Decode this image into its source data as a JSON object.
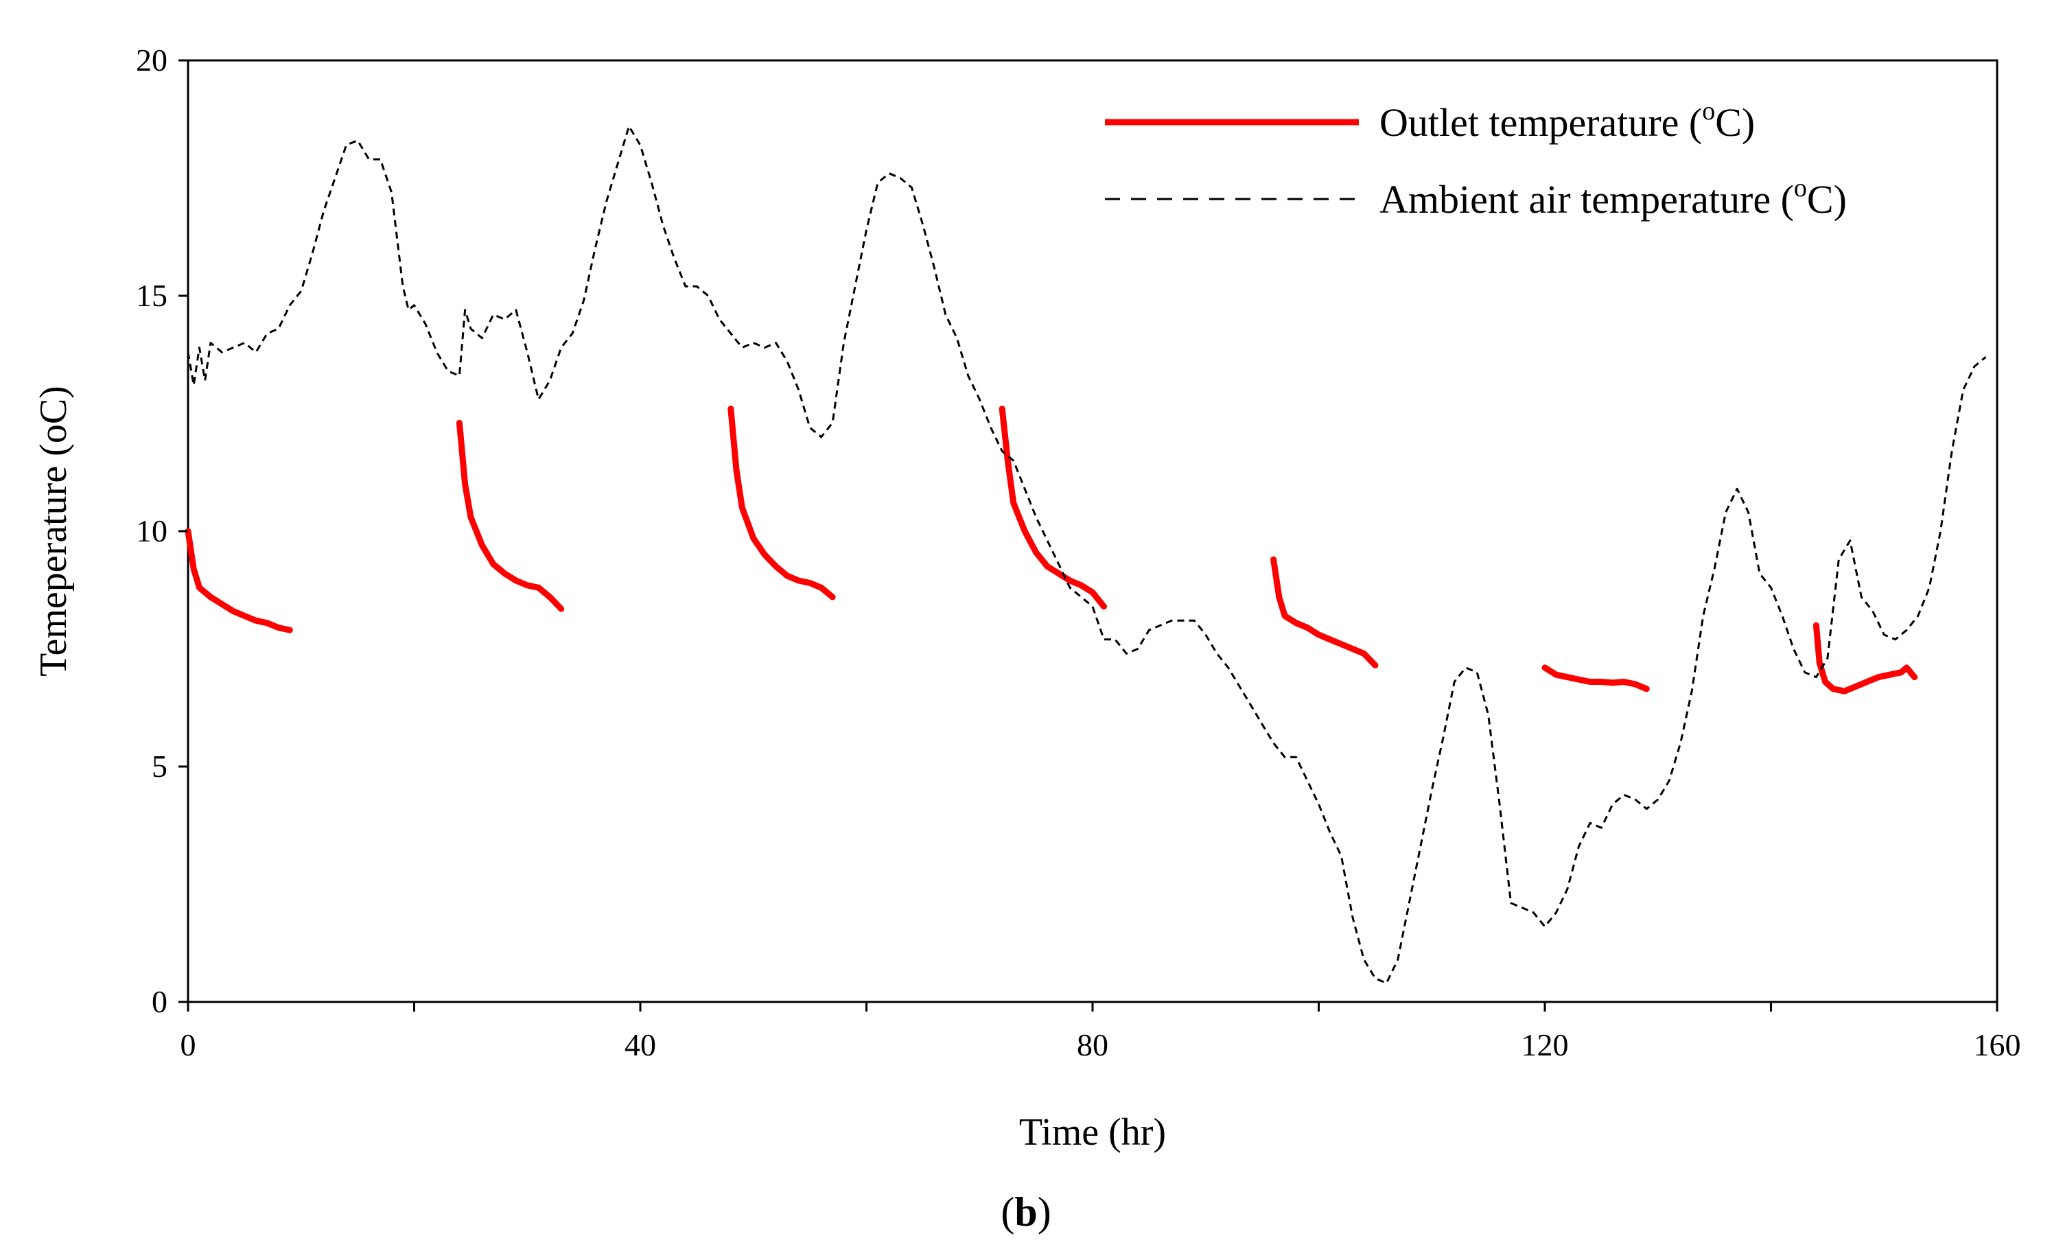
{
  "chart_data": {
    "type": "line",
    "xlabel": "Time (hr)",
    "ylabel": "Temeperature (oC)",
    "xlim": [
      0,
      160
    ],
    "ylim": [
      0,
      20
    ],
    "x_ticks": [
      0,
      40,
      80,
      120,
      160
    ],
    "x_minor_ticks": [
      20,
      60,
      100,
      140
    ],
    "y_ticks": [
      0,
      5,
      10,
      15,
      20
    ],
    "caption": {
      "open": "(",
      "letter": "b",
      "close": ")"
    },
    "legend_position": "top-right",
    "series": [
      {
        "name": "Outlet temperature",
        "legend_label": "Outlet temperature (",
        "legend_sup": "o",
        "legend_suffix": "C)",
        "color": "#ff0000",
        "style": "solid",
        "segments": [
          {
            "x": [
              0,
              0.5,
              1,
              2,
              3,
              4,
              5,
              6,
              7,
              8,
              9
            ],
            "y": [
              10.0,
              9.2,
              8.8,
              8.6,
              8.45,
              8.3,
              8.2,
              8.1,
              8.05,
              7.95,
              7.9
            ]
          },
          {
            "x": [
              24,
              24.5,
              25,
              26,
              27,
              28,
              29,
              30,
              31,
              32,
              33
            ],
            "y": [
              12.3,
              11.0,
              10.3,
              9.7,
              9.3,
              9.1,
              8.95,
              8.85,
              8.8,
              8.6,
              8.35
            ]
          },
          {
            "x": [
              48,
              48.5,
              49,
              50,
              51,
              52,
              53,
              54,
              55,
              56,
              57
            ],
            "y": [
              12.6,
              11.3,
              10.5,
              9.85,
              9.5,
              9.25,
              9.05,
              8.95,
              8.9,
              8.8,
              8.6
            ]
          },
          {
            "x": [
              72,
              72.5,
              73,
              74,
              75,
              76,
              77,
              78,
              79,
              80,
              81
            ],
            "y": [
              12.6,
              11.5,
              10.6,
              10.0,
              9.55,
              9.25,
              9.1,
              8.95,
              8.85,
              8.7,
              8.4
            ]
          },
          {
            "x": [
              96,
              96.5,
              97,
              98,
              99,
              100,
              101,
              102,
              103,
              104,
              105
            ],
            "y": [
              9.4,
              8.6,
              8.2,
              8.05,
              7.95,
              7.8,
              7.7,
              7.6,
              7.5,
              7.4,
              7.15
            ]
          },
          {
            "x": [
              120,
              121,
              122,
              123,
              124,
              125,
              126,
              127,
              128,
              129
            ],
            "y": [
              7.1,
              6.95,
              6.9,
              6.85,
              6.8,
              6.8,
              6.78,
              6.8,
              6.75,
              6.65
            ]
          },
          {
            "x": [
              144,
              144.3,
              144.8,
              145.5,
              146.5,
              147.5,
              148.5,
              149.5,
              150.5,
              151.5,
              152,
              152.7
            ],
            "y": [
              8.0,
              7.2,
              6.8,
              6.65,
              6.6,
              6.7,
              6.8,
              6.9,
              6.95,
              7.0,
              7.1,
              6.9
            ]
          }
        ]
      },
      {
        "name": "Ambient air temperature",
        "legend_label": "Ambient air temperature (",
        "legend_sup": "o",
        "legend_suffix": "C)",
        "color": "#000000",
        "style": "dashed",
        "x": [
          0,
          0.5,
          1,
          1.5,
          2,
          3,
          4,
          5,
          6,
          7,
          8,
          9,
          10,
          11,
          12,
          13,
          14,
          15,
          16,
          17,
          18,
          19,
          19.5,
          20,
          21,
          22,
          23,
          24,
          24.5,
          25,
          26,
          27,
          28,
          29,
          30,
          31,
          32,
          33,
          34,
          35,
          36,
          37,
          38,
          39,
          40,
          41,
          42,
          43,
          44,
          45,
          46,
          47,
          48,
          49,
          50,
          51,
          52,
          53,
          54,
          55,
          56,
          57,
          58,
          59,
          60,
          61,
          62,
          63,
          64,
          65,
          66,
          67,
          68,
          69,
          70,
          71,
          72,
          73,
          74,
          75,
          76,
          77,
          78,
          79,
          80,
          81,
          82,
          83,
          84,
          85,
          86,
          87,
          88,
          89,
          90,
          91,
          92,
          93,
          94,
          95,
          96,
          97,
          98,
          99,
          100,
          101,
          102,
          103,
          104,
          105,
          106,
          107,
          108,
          109,
          110,
          111,
          112,
          113,
          114,
          115,
          116,
          117,
          118,
          119,
          120,
          121,
          122,
          123,
          124,
          125,
          126,
          127,
          128,
          129,
          130,
          131,
          132,
          133,
          134,
          135,
          136,
          137,
          138,
          139,
          140,
          141,
          142,
          143,
          144,
          145,
          146,
          147,
          148,
          149,
          150,
          151,
          152,
          153,
          154,
          155,
          156,
          157,
          158,
          159
        ],
        "y": [
          13.8,
          13.1,
          13.9,
          13.2,
          14.0,
          13.8,
          13.9,
          14.0,
          13.8,
          14.2,
          14.3,
          14.8,
          15.1,
          15.9,
          16.8,
          17.5,
          18.2,
          18.3,
          17.9,
          17.9,
          17.2,
          15.2,
          14.7,
          14.8,
          14.4,
          13.8,
          13.4,
          13.3,
          14.7,
          14.3,
          14.1,
          14.6,
          14.5,
          14.7,
          13.8,
          12.8,
          13.2,
          13.9,
          14.2,
          14.9,
          16.0,
          17.0,
          17.8,
          18.6,
          18.2,
          17.4,
          16.5,
          15.8,
          15.2,
          15.2,
          15.0,
          14.5,
          14.2,
          13.9,
          14.0,
          13.9,
          14.0,
          13.6,
          13.0,
          12.2,
          12.0,
          12.3,
          14.0,
          15.2,
          16.4,
          17.4,
          17.6,
          17.5,
          17.3,
          16.5,
          15.6,
          14.6,
          14.1,
          13.3,
          12.8,
          12.2,
          11.7,
          11.5,
          10.9,
          10.3,
          9.8,
          9.3,
          8.8,
          8.6,
          8.4,
          7.7,
          7.7,
          7.4,
          7.5,
          7.9,
          8.0,
          8.1,
          8.1,
          8.1,
          7.8,
          7.4,
          7.1,
          6.7,
          6.3,
          5.9,
          5.5,
          5.2,
          5.2,
          4.7,
          4.2,
          3.6,
          3.1,
          1.8,
          0.9,
          0.5,
          0.4,
          0.9,
          2.1,
          3.3,
          4.5,
          5.6,
          6.8,
          7.1,
          7.0,
          6.1,
          4.2,
          2.1,
          2.0,
          1.9,
          1.6,
          1.9,
          2.4,
          3.3,
          3.8,
          3.7,
          4.2,
          4.4,
          4.3,
          4.1,
          4.3,
          4.7,
          5.5,
          6.6,
          8.2,
          9.2,
          10.4,
          10.9,
          10.4,
          9.1,
          8.8,
          8.2,
          7.5,
          7.0,
          6.9,
          7.3,
          9.4,
          9.8,
          8.6,
          8.3,
          7.8,
          7.7,
          7.9,
          8.2,
          8.8,
          10.0,
          11.7,
          13.0,
          13.5,
          13.7
        ]
      }
    ]
  }
}
